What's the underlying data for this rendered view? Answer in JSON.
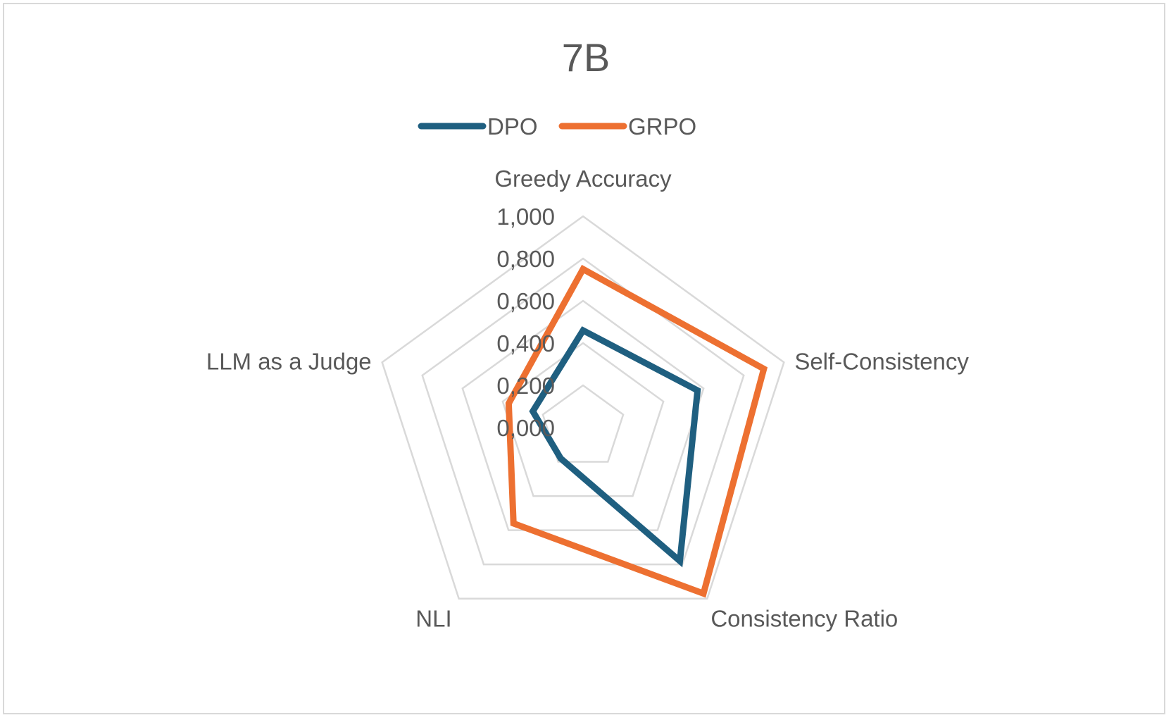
{
  "chart_data": {
    "type": "radar",
    "title": "7B",
    "axes": [
      "Greedy Accuracy",
      "Self-Consistency",
      "Consistency Ratio",
      "NLI",
      "LLM as a Judge"
    ],
    "ticks": [
      "0,000",
      "0,200",
      "0,400",
      "0,600",
      "0,800",
      "1,000"
    ],
    "range": [
      0,
      1
    ],
    "grid": true,
    "legend_position": "top",
    "series": [
      {
        "name": "DPO",
        "color": "#1f5f80",
        "values": [
          0.46,
          0.57,
          0.78,
          0.18,
          0.25
        ]
      },
      {
        "name": "GRPO",
        "color": "#ed7031",
        "values": [
          0.75,
          0.9,
          0.97,
          0.56,
          0.37
        ]
      }
    ]
  }
}
